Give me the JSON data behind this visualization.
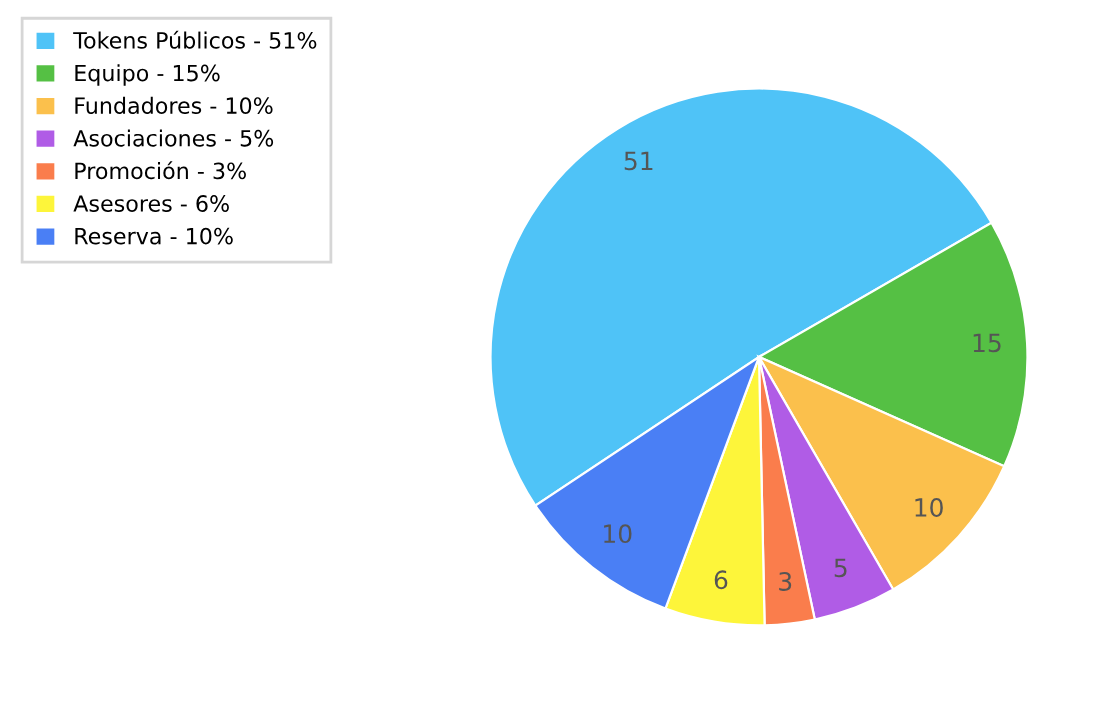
{
  "chart_data": {
    "type": "pie",
    "categories": [
      "Tokens Públicos - 51%",
      "Equipo - 15%",
      "Fundadores - 10%",
      "Asociaciones - 5%",
      "Promoción - 3%",
      "Asesores - 6%",
      "Reserva - 10%"
    ],
    "values": [
      51,
      15,
      10,
      5,
      3,
      6,
      10
    ],
    "colors": [
      "#4fc3f7",
      "#55c044",
      "#fbc04c",
      "#b05ce6",
      "#fa7d4c",
      "#fdf53a",
      "#4a7ff5"
    ],
    "data_labels": true,
    "legend": "top left"
  }
}
